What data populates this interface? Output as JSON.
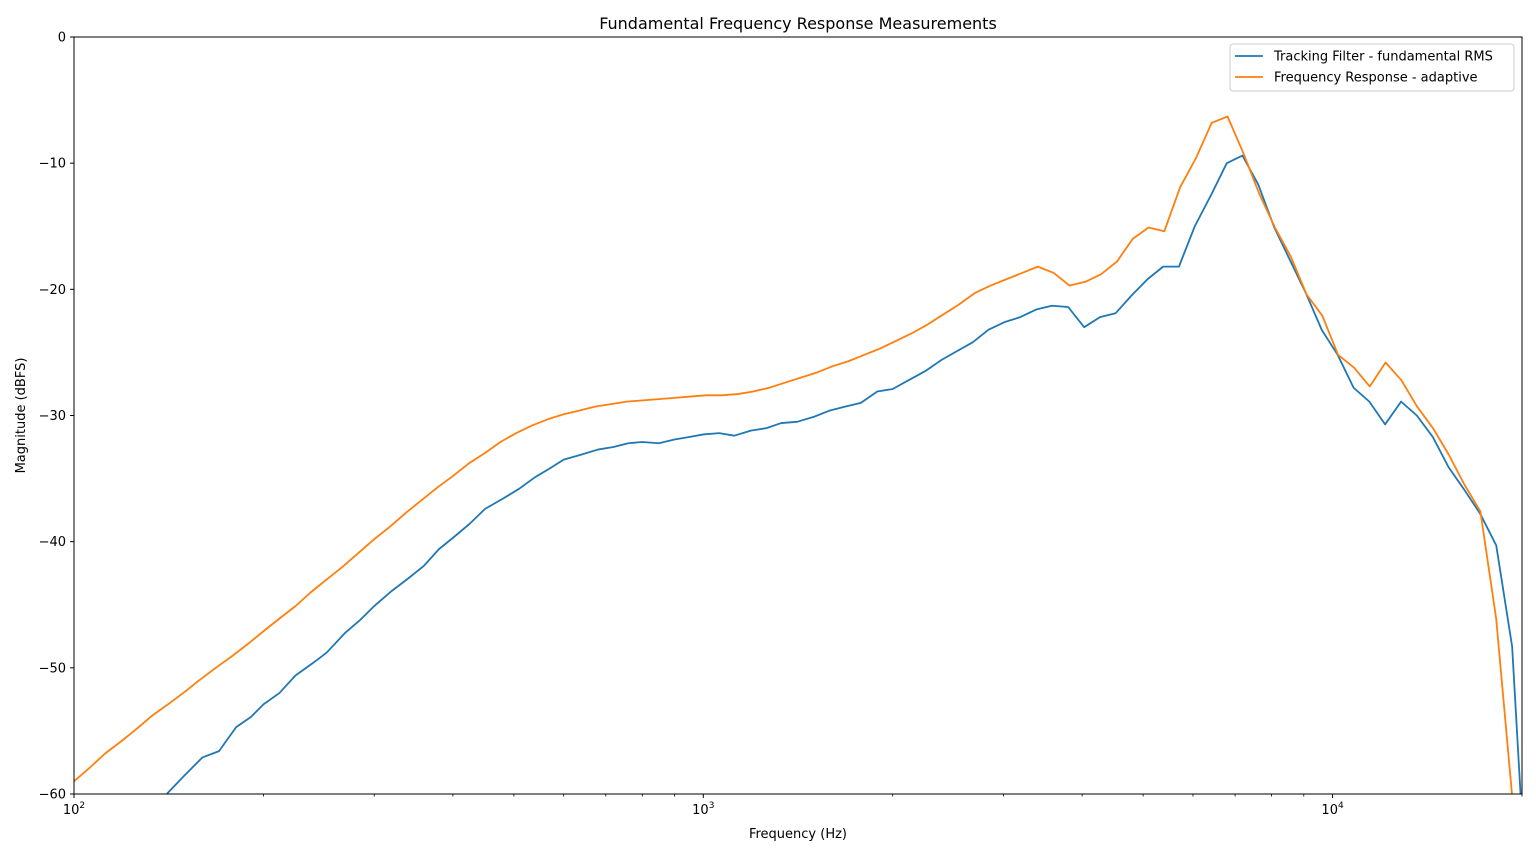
{
  "chart_data": {
    "type": "line",
    "title": "Fundamental Frequency Response Measurements",
    "xlabel": "Frequency (Hz)",
    "ylabel": "Magnitude (dBFS)",
    "xscale": "log",
    "xlim": [
      100,
      20000
    ],
    "ylim": [
      -60,
      0
    ],
    "x_ticks": [
      {
        "value": 100,
        "base": "10",
        "exp": "2"
      },
      {
        "value": 1000,
        "base": "10",
        "exp": "3"
      },
      {
        "value": 10000,
        "base": "10",
        "exp": "4"
      }
    ],
    "y_ticks": [
      {
        "value": 0,
        "label": "0"
      },
      {
        "value": -10,
        "label": "−10"
      },
      {
        "value": -20,
        "label": "−20"
      },
      {
        "value": -30,
        "label": "−30"
      },
      {
        "value": -40,
        "label": "−40"
      },
      {
        "value": -50,
        "label": "−50"
      },
      {
        "value": -60,
        "label": "−60"
      }
    ],
    "grid": false,
    "legend_position": "top-right",
    "series": [
      {
        "name": "Tracking Filter - fundamental RMS",
        "color": "#1f77b4",
        "x": [
          120,
          130,
          141,
          150,
          160,
          170,
          181,
          191,
          200,
          212,
          225,
          240,
          252,
          270,
          285,
          300,
          320,
          340,
          360,
          380,
          400,
          425,
          450,
          480,
          510,
          540,
          570,
          600,
          640,
          680,
          720,
          760,
          800,
          850,
          900,
          950,
          1000,
          1060,
          1120,
          1190,
          1260,
          1330,
          1410,
          1500,
          1590,
          1680,
          1780,
          1890,
          2000,
          2120,
          2250,
          2390,
          2530,
          2680,
          2840,
          3010,
          3190,
          3380,
          3580,
          3800,
          4030,
          4270,
          4520,
          4790,
          5080,
          5380,
          5700,
          6040,
          6400,
          6790,
          7190,
          7620,
          8080,
          8560,
          9070,
          9610,
          10190,
          10800,
          11440,
          12120,
          12850,
          13610,
          14430,
          15290,
          16200,
          17170,
          18200,
          19290,
          20000
        ],
        "y": [
          -64.5,
          -62.2,
          -59.9,
          -58.5,
          -57.1,
          -56.6,
          -54.7,
          -53.9,
          -52.9,
          -52.0,
          -50.6,
          -49.6,
          -48.8,
          -47.2,
          -46.2,
          -45.1,
          -43.9,
          -42.9,
          -41.9,
          -40.6,
          -39.7,
          -38.6,
          -37.4,
          -36.6,
          -35.8,
          -34.9,
          -34.2,
          -33.5,
          -33.1,
          -32.7,
          -32.5,
          -32.2,
          -32.1,
          -32.2,
          -31.9,
          -31.7,
          -31.5,
          -31.4,
          -31.6,
          -31.2,
          -31.0,
          -30.6,
          -30.5,
          -30.1,
          -29.6,
          -29.3,
          -29.0,
          -28.1,
          -27.9,
          -27.2,
          -26.5,
          -25.6,
          -24.9,
          -24.2,
          -23.2,
          -22.6,
          -22.2,
          -21.6,
          -21.3,
          -21.4,
          -23.0,
          -22.2,
          -21.9,
          -20.5,
          -19.2,
          -18.2,
          -18.2,
          -15.0,
          -12.6,
          -10.0,
          -9.4,
          -11.7,
          -15.1,
          -17.7,
          -20.3,
          -23.2,
          -25.2,
          -27.8,
          -28.9,
          -30.7,
          -28.9,
          -30.0,
          -31.7,
          -34.1,
          -35.9,
          -37.8,
          -40.3,
          -48.3,
          -62.0
        ]
      },
      {
        "name": "Frequency Response - adaptive",
        "color": "#ff7f0e",
        "x": [
          100,
          106,
          112,
          119,
          126,
          133,
          141,
          150,
          158,
          168,
          178,
          189,
          200,
          212,
          225,
          238,
          252,
          267,
          283,
          300,
          318,
          337,
          357,
          378,
          400,
          424,
          449,
          476,
          504,
          534,
          566,
          600,
          636,
          673,
          713,
          756,
          801,
          849,
          900,
          953,
          1010,
          1070,
          1134,
          1201,
          1273,
          1348,
          1429,
          1514,
          1604,
          1700,
          1801,
          1908,
          2022,
          2142,
          2270,
          2405,
          2548,
          2700,
          2861,
          3031,
          3211,
          3402,
          3605,
          3819,
          4047,
          4288,
          4543,
          4813,
          5100,
          5403,
          5725,
          6066,
          6427,
          6809,
          7215,
          7644,
          8099,
          8581,
          9092,
          9633,
          10206,
          10814,
          11458,
          12140,
          12862,
          13628,
          14439,
          15298,
          16209,
          17174,
          18196,
          19279,
          20000
        ],
        "y": [
          -59.0,
          -57.9,
          -56.8,
          -55.8,
          -54.8,
          -53.8,
          -52.9,
          -51.9,
          -51.0,
          -50.0,
          -49.1,
          -48.1,
          -47.1,
          -46.1,
          -45.1,
          -44.0,
          -43.0,
          -42.0,
          -40.9,
          -39.8,
          -38.8,
          -37.7,
          -36.7,
          -35.7,
          -34.8,
          -33.8,
          -33.0,
          -32.1,
          -31.4,
          -30.8,
          -30.3,
          -29.9,
          -29.6,
          -29.3,
          -29.1,
          -28.9,
          -28.8,
          -28.7,
          -28.6,
          -28.5,
          -28.4,
          -28.4,
          -28.3,
          -28.1,
          -27.8,
          -27.4,
          -27.0,
          -26.6,
          -26.1,
          -25.7,
          -25.2,
          -24.7,
          -24.1,
          -23.5,
          -22.8,
          -22.0,
          -21.2,
          -20.3,
          -19.7,
          -19.2,
          -18.7,
          -18.2,
          -18.7,
          -19.7,
          -19.4,
          -18.8,
          -17.8,
          -16.0,
          -15.1,
          -15.4,
          -11.9,
          -9.6,
          -6.8,
          -6.3,
          -9.2,
          -12.4,
          -15.1,
          -17.4,
          -20.4,
          -22.1,
          -25.2,
          -26.2,
          -27.7,
          -25.8,
          -27.2,
          -29.3,
          -31.0,
          -33.1,
          -35.5,
          -37.6,
          -46.1,
          -60.0,
          -62.0
        ]
      }
    ]
  }
}
